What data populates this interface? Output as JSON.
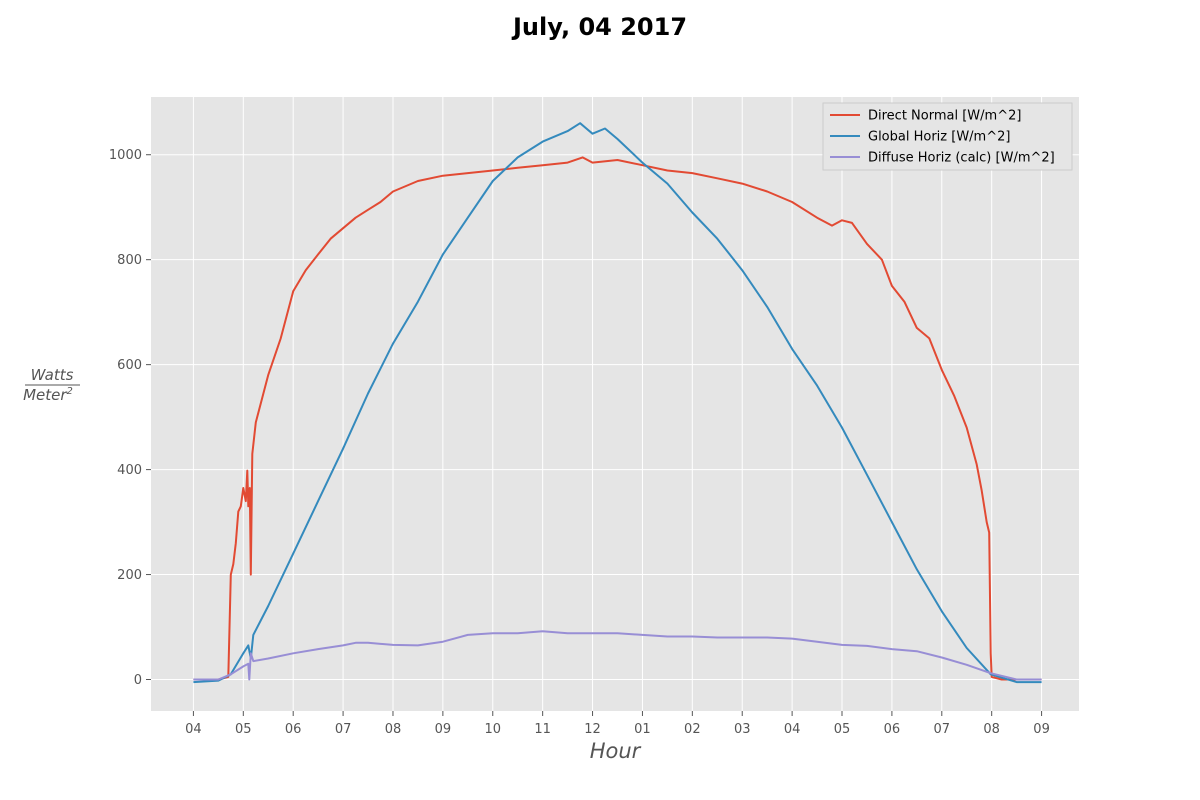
{
  "chart_data": {
    "type": "line",
    "title": "July, 04 2017",
    "xlabel": "Hour",
    "ylabel": {
      "numerator": "Watts",
      "denominator": "Meter",
      "exponent": "2"
    },
    "x_unit": "hours elapsed since 04:00",
    "x_ticks": [
      "04",
      "05",
      "06",
      "07",
      "08",
      "09",
      "10",
      "11",
      "12",
      "01",
      "02",
      "03",
      "04",
      "05",
      "06",
      "07",
      "08",
      "09"
    ],
    "ylim": [
      -60,
      1110
    ],
    "xlim": [
      -0.85,
      17.75
    ],
    "y_ticks": [
      0,
      200,
      400,
      600,
      800,
      1000
    ],
    "grid": true,
    "background": "#e5e5e5",
    "legend_position": "top-right",
    "series": [
      {
        "name": "Direct Normal [W/m^2]",
        "color": "#e24a33",
        "points": [
          [
            0,
            0
          ],
          [
            0.5,
            0
          ],
          [
            0.7,
            5
          ],
          [
            0.75,
            200
          ],
          [
            0.8,
            220
          ],
          [
            0.85,
            260
          ],
          [
            0.9,
            320
          ],
          [
            0.95,
            330
          ],
          [
            1.0,
            365
          ],
          [
            1.05,
            340
          ],
          [
            1.08,
            398
          ],
          [
            1.1,
            330
          ],
          [
            1.13,
            365
          ],
          [
            1.15,
            200
          ],
          [
            1.18,
            430
          ],
          [
            1.25,
            490
          ],
          [
            1.5,
            580
          ],
          [
            1.75,
            650
          ],
          [
            2.0,
            740
          ],
          [
            2.25,
            780
          ],
          [
            2.5,
            810
          ],
          [
            2.75,
            840
          ],
          [
            3.0,
            860
          ],
          [
            3.25,
            880
          ],
          [
            3.5,
            895
          ],
          [
            3.75,
            910
          ],
          [
            4.0,
            930
          ],
          [
            4.5,
            950
          ],
          [
            5.0,
            960
          ],
          [
            5.5,
            965
          ],
          [
            6.0,
            970
          ],
          [
            6.5,
            975
          ],
          [
            7.0,
            980
          ],
          [
            7.5,
            985
          ],
          [
            7.8,
            995
          ],
          [
            8.0,
            985
          ],
          [
            8.5,
            990
          ],
          [
            9.0,
            980
          ],
          [
            9.5,
            970
          ],
          [
            10.0,
            965
          ],
          [
            10.5,
            955
          ],
          [
            11.0,
            945
          ],
          [
            11.5,
            930
          ],
          [
            12.0,
            910
          ],
          [
            12.5,
            880
          ],
          [
            12.8,
            865
          ],
          [
            13.0,
            875
          ],
          [
            13.2,
            870
          ],
          [
            13.5,
            830
          ],
          [
            13.8,
            800
          ],
          [
            14.0,
            750
          ],
          [
            14.25,
            720
          ],
          [
            14.5,
            670
          ],
          [
            14.75,
            650
          ],
          [
            15.0,
            590
          ],
          [
            15.25,
            540
          ],
          [
            15.5,
            480
          ],
          [
            15.7,
            410
          ],
          [
            15.8,
            360
          ],
          [
            15.9,
            300
          ],
          [
            15.95,
            280
          ],
          [
            15.98,
            50
          ],
          [
            16.0,
            5
          ],
          [
            16.2,
            0
          ],
          [
            17,
            0
          ]
        ]
      },
      {
        "name": "Global Horiz [W/m^2]",
        "color": "#348abd",
        "points": [
          [
            0,
            -5
          ],
          [
            0.5,
            -2
          ],
          [
            0.75,
            10
          ],
          [
            1.0,
            50
          ],
          [
            1.1,
            65
          ],
          [
            1.15,
            40
          ],
          [
            1.2,
            85
          ],
          [
            1.5,
            140
          ],
          [
            2.0,
            240
          ],
          [
            2.5,
            340
          ],
          [
            3.0,
            440
          ],
          [
            3.5,
            545
          ],
          [
            4.0,
            640
          ],
          [
            4.5,
            720
          ],
          [
            5.0,
            810
          ],
          [
            5.5,
            880
          ],
          [
            6.0,
            950
          ],
          [
            6.5,
            995
          ],
          [
            7.0,
            1025
          ],
          [
            7.5,
            1045
          ],
          [
            7.75,
            1060
          ],
          [
            8.0,
            1040
          ],
          [
            8.25,
            1050
          ],
          [
            8.5,
            1030
          ],
          [
            9.0,
            985
          ],
          [
            9.5,
            945
          ],
          [
            10.0,
            890
          ],
          [
            10.5,
            840
          ],
          [
            11.0,
            780
          ],
          [
            11.5,
            710
          ],
          [
            12.0,
            630
          ],
          [
            12.5,
            560
          ],
          [
            13.0,
            480
          ],
          [
            13.5,
            390
          ],
          [
            14.0,
            300
          ],
          [
            14.5,
            210
          ],
          [
            15.0,
            130
          ],
          [
            15.5,
            60
          ],
          [
            15.98,
            10
          ],
          [
            16.5,
            -5
          ],
          [
            17,
            -5
          ]
        ]
      },
      {
        "name": "Diffuse Horiz (calc) [W/m^2]",
        "color": "#988ed5",
        "points": [
          [
            0,
            0
          ],
          [
            0.5,
            0
          ],
          [
            0.75,
            10
          ],
          [
            1.0,
            25
          ],
          [
            1.1,
            30
          ],
          [
            1.12,
            0
          ],
          [
            1.15,
            50
          ],
          [
            1.2,
            35
          ],
          [
            1.5,
            40
          ],
          [
            2.0,
            50
          ],
          [
            2.5,
            58
          ],
          [
            3.0,
            65
          ],
          [
            3.25,
            70
          ],
          [
            3.5,
            70
          ],
          [
            4.0,
            66
          ],
          [
            4.5,
            65
          ],
          [
            5.0,
            72
          ],
          [
            5.5,
            85
          ],
          [
            6.0,
            88
          ],
          [
            6.5,
            88
          ],
          [
            7.0,
            92
          ],
          [
            7.5,
            88
          ],
          [
            8.0,
            88
          ],
          [
            8.5,
            88
          ],
          [
            9.0,
            85
          ],
          [
            9.5,
            82
          ],
          [
            10.0,
            82
          ],
          [
            10.5,
            80
          ],
          [
            11.0,
            80
          ],
          [
            11.5,
            80
          ],
          [
            12.0,
            78
          ],
          [
            12.5,
            72
          ],
          [
            13.0,
            66
          ],
          [
            13.5,
            64
          ],
          [
            14.0,
            58
          ],
          [
            14.5,
            54
          ],
          [
            15.0,
            42
          ],
          [
            15.5,
            28
          ],
          [
            15.98,
            12
          ],
          [
            16.5,
            0
          ],
          [
            17,
            0
          ]
        ]
      }
    ]
  }
}
